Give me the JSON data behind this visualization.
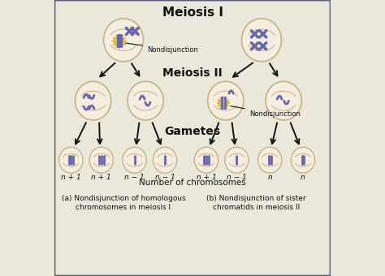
{
  "bg_color": "#eae8db",
  "border_color": "#5a5a7a",
  "cell_fill": "#f5ede0",
  "cell_edge": "#c8b080",
  "chrom_color": "#6666aa",
  "arrow_color": "#111111",
  "label_color": "#111111",
  "title_meiosis1": "Meiosis I",
  "title_meiosis2": "Meiosis II",
  "title_gametes": "Gametes",
  "label_num_chrom": "Number of chromosomes",
  "caption_a": "(a) Nondisjunction of homologous\nchromosomes in meiosis I",
  "caption_b": "(b) Nondisjunction of sister\nchromatids in meiosis II",
  "nondisjunction_label": "Nondisjunction",
  "highlight_color": "#f0c020",
  "gamete_labels_left": [
    "n + 1",
    "n + 1",
    "n − 1",
    "n − 1"
  ],
  "gamete_labels_right": [
    "n + 1",
    "n − 1",
    "n",
    "n"
  ],
  "figsize": [
    4.74,
    3.4
  ],
  "dpi": 100
}
